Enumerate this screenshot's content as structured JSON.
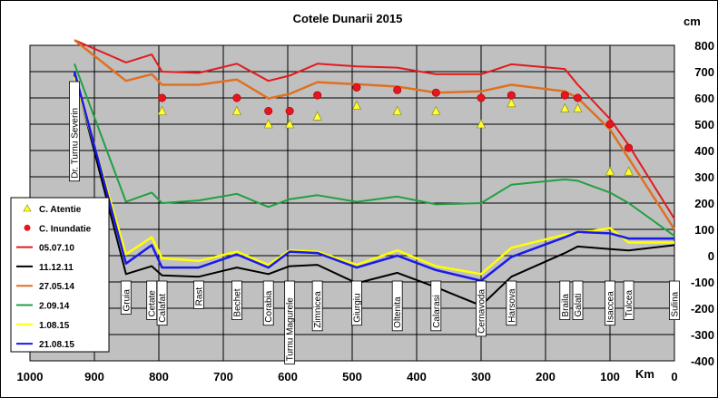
{
  "chart_data": {
    "type": "line",
    "title": "Cotele Dunarii 2015",
    "ylabel": "cm",
    "xlabel": "Km",
    "xlim": [
      1000,
      0
    ],
    "ylim": [
      -400,
      800
    ],
    "x_ticks": [
      "1000",
      "900",
      "800",
      "700",
      "600",
      "500",
      "400",
      "300",
      "200",
      "100",
      "0"
    ],
    "y_ticks": [
      "800",
      "700",
      "600",
      "500",
      "400",
      "300",
      "200",
      "100",
      "0",
      "-100",
      "-200",
      "-300",
      "-400"
    ],
    "x_tick_values": [
      1000,
      900,
      800,
      700,
      600,
      500,
      400,
      300,
      200,
      100,
      0
    ],
    "y_tick_values": [
      800,
      700,
      600,
      500,
      400,
      300,
      200,
      100,
      0,
      -100,
      -200,
      -300,
      -400
    ],
    "grid": true,
    "legend_position": "left",
    "stations": [
      {
        "name": "Dr. Turnu Severin",
        "km": 931,
        "slot": "upper"
      },
      {
        "name": "Gruia",
        "km": 851,
        "slot": "lower"
      },
      {
        "name": "Cetate",
        "km": 811,
        "slot": "lower"
      },
      {
        "name": "Calafat",
        "km": 795,
        "slot": "lower"
      },
      {
        "name": "Rast",
        "km": 738,
        "slot": "lower"
      },
      {
        "name": "Bechet",
        "km": 679,
        "slot": "lower"
      },
      {
        "name": "Corabia",
        "km": 630,
        "slot": "lower"
      },
      {
        "name": "Turnu Magurele",
        "km": 597,
        "slot": "lower"
      },
      {
        "name": "Zimnicea",
        "km": 554,
        "slot": "lower"
      },
      {
        "name": "Giurgiu",
        "km": 493,
        "slot": "lower"
      },
      {
        "name": "Oltenita",
        "km": 430,
        "slot": "lower"
      },
      {
        "name": "Calarasi",
        "km": 370,
        "slot": "lower"
      },
      {
        "name": "Cernavoda",
        "km": 300,
        "slot": "lower"
      },
      {
        "name": "Harsova",
        "km": 253,
        "slot": "lower"
      },
      {
        "name": "Braila",
        "km": 170,
        "slot": "lower"
      },
      {
        "name": "Galati",
        "km": 150,
        "slot": "lower"
      },
      {
        "name": "Isaccea",
        "km": 100,
        "slot": "lower"
      },
      {
        "name": "Tulcea",
        "km": 71,
        "slot": "lower"
      },
      {
        "name": "Sulina",
        "km": 0,
        "slot": "lower"
      }
    ],
    "series": [
      {
        "name": "05.07.10",
        "color": "#e31a1c",
        "width": 2,
        "x": [
          931,
          851,
          811,
          795,
          738,
          679,
          630,
          597,
          554,
          493,
          430,
          370,
          300,
          253,
          170,
          150,
          100,
          71,
          0
        ],
        "y": [
          820,
          735,
          765,
          700,
          695,
          730,
          665,
          685,
          730,
          720,
          715,
          690,
          690,
          728,
          710,
          650,
          520,
          420,
          140
        ]
      },
      {
        "name": "11.12.11",
        "color": "#000000",
        "width": 2,
        "x": [
          931,
          851,
          811,
          795,
          738,
          679,
          630,
          597,
          554,
          493,
          430,
          370,
          300,
          253,
          170,
          150,
          100,
          71,
          0
        ],
        "y": [
          690,
          -70,
          -40,
          -75,
          -80,
          -45,
          -70,
          -40,
          -35,
          -105,
          -65,
          -120,
          -190,
          -80,
          10,
          35,
          25,
          20,
          40
        ]
      },
      {
        "name": "27.05.14",
        "color": "#e07020",
        "width": 2.5,
        "x": [
          931,
          851,
          811,
          795,
          738,
          679,
          630,
          597,
          554,
          493,
          430,
          370,
          300,
          253,
          170,
          150,
          100,
          71,
          0
        ],
        "y": [
          820,
          665,
          690,
          650,
          650,
          670,
          598,
          615,
          660,
          652,
          643,
          620,
          625,
          650,
          625,
          600,
          480,
          370,
          100
        ]
      },
      {
        "name": "2.09.14",
        "color": "#20a040",
        "width": 2,
        "x": [
          931,
          851,
          811,
          795,
          738,
          679,
          630,
          597,
          554,
          493,
          430,
          370,
          300,
          253,
          170,
          150,
          100,
          71,
          0
        ],
        "y": [
          730,
          205,
          240,
          200,
          210,
          235,
          185,
          215,
          230,
          205,
          225,
          195,
          200,
          270,
          290,
          285,
          240,
          200,
          75
        ]
      },
      {
        "name": "1.08.15",
        "color": "#ffff00",
        "width": 2.5,
        "x": [
          931,
          851,
          811,
          795,
          738,
          679,
          630,
          597,
          554,
          493,
          430,
          370,
          300,
          253,
          170,
          150,
          100,
          71,
          0
        ],
        "y": [
          680,
          5,
          70,
          -10,
          -20,
          15,
          -35,
          20,
          15,
          -35,
          20,
          -40,
          -70,
          30,
          80,
          85,
          105,
          50,
          50
        ]
      },
      {
        "name": "21.08.15",
        "color": "#1a1ae6",
        "width": 2.5,
        "x": [
          931,
          851,
          811,
          795,
          738,
          679,
          630,
          597,
          554,
          493,
          430,
          370,
          300,
          253,
          170,
          150,
          100,
          71,
          0
        ],
        "y": [
          700,
          -30,
          40,
          -45,
          -45,
          5,
          -45,
          15,
          10,
          -45,
          0,
          -55,
          -95,
          -5,
          70,
          90,
          85,
          65,
          65
        ]
      }
    ],
    "markers": [
      {
        "name": "C. Atentie",
        "shape": "triangle",
        "color": "#ffff33",
        "x": [
          795,
          679,
          630,
          597,
          554,
          493,
          430,
          370,
          300,
          253,
          170,
          150,
          100,
          71
        ],
        "y": [
          550,
          550,
          500,
          500,
          530,
          570,
          550,
          550,
          500,
          580,
          560,
          560,
          320,
          320
        ]
      },
      {
        "name": "C. Inundatie",
        "shape": "circle",
        "color": "#e8141e",
        "x": [
          795,
          679,
          630,
          597,
          554,
          493,
          430,
          370,
          300,
          253,
          170,
          150,
          100,
          71
        ],
        "y": [
          600,
          600,
          550,
          550,
          610,
          640,
          630,
          620,
          600,
          610,
          610,
          600,
          500,
          410
        ]
      }
    ],
    "legend": [
      {
        "label": "C. Atentie",
        "kind": "triangle",
        "color": "#ffff33"
      },
      {
        "label": "C. Inundatie",
        "kind": "circle",
        "color": "#e8141e"
      },
      {
        "label": "05.07.10",
        "kind": "line",
        "color": "#e31a1c"
      },
      {
        "label": "11.12.11",
        "kind": "line",
        "color": "#000000"
      },
      {
        "label": "27.05.14",
        "kind": "line",
        "color": "#e07020"
      },
      {
        "label": "2.09.14",
        "kind": "line",
        "color": "#20a040"
      },
      {
        "label": "1.08.15",
        "kind": "line",
        "color": "#ffff00"
      },
      {
        "label": "21.08.15",
        "kind": "line",
        "color": "#1a1ae6"
      }
    ]
  },
  "colors": {
    "plot_background": "#c0c0c0",
    "grid": "#000000"
  }
}
